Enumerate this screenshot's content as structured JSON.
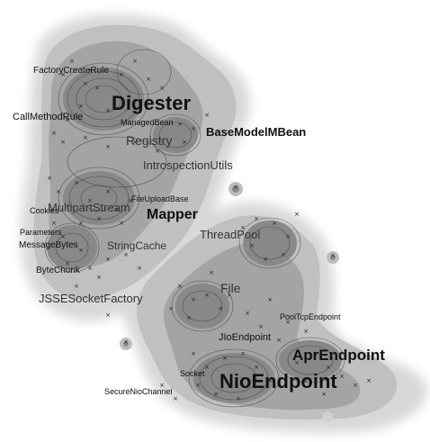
{
  "labels": {
    "digester": "Digester",
    "basemodelmbean": "BaseModelMBean",
    "factorycreaterule": "FactoryCreateRule",
    "callmethodrule": "CallMethodRule",
    "managedbean": "ManagedBean",
    "registry": "Registry",
    "introspectionutils": "IntrospectionUtils",
    "fileuploadbase": "FileUploadBase",
    "multipartstream": "MultipartStream",
    "cookies": "Cookies",
    "mapper": "Mapper",
    "parameters": "Parameters",
    "messagebytes": "MessageBytes",
    "stringcache": "StringCache",
    "threadpool": "ThreadPool",
    "bytechunk": "ByteChunk",
    "jssesocketfactory": "JSSESocketFactory",
    "file": "File",
    "pooltcpendpoint": "PoolTcpEndpoint",
    "jioendpoint": "JIoEndpoint",
    "aprendpoint": "AprEndpoint",
    "socket": "Socket",
    "securenioChannel": "SecureNioChannel",
    "nioendpoint": "NioEndpoint"
  },
  "colors": {
    "background": "#ffffff",
    "halo": "#d8d8d8",
    "fill_light": "#bdbdbd",
    "fill_mid": "#a2a2a2",
    "fill_dark": "#868686",
    "contour": "#3a3a3a",
    "marker": "#222222",
    "text": "#111111"
  },
  "marker_symbol": "×"
}
